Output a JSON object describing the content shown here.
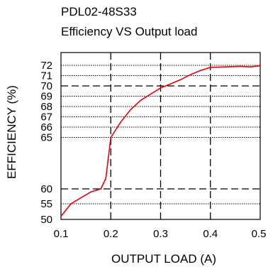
{
  "chart_data": {
    "type": "line",
    "title": "PDL02-48S33",
    "subtitle": "Efficiency VS Output load",
    "xlabel": "OUTPUT LOAD (A)",
    "ylabel": "EFFICIENCY (%)",
    "xlim": [
      0.1,
      0.5
    ],
    "x_ticks": [
      "0.1",
      "0.2",
      "0.3",
      "0.4",
      "0.5"
    ],
    "y_ticks": [
      "50",
      "55",
      "60",
      "65",
      "66",
      "67",
      "68",
      "69",
      "70",
      "71",
      "72"
    ],
    "y_scale": "piecewise (50-60 compressed, 60-72 expanded)",
    "grid": true,
    "line_color": "#e8000b",
    "series": [
      {
        "x": [
          0.1,
          0.12,
          0.14,
          0.15,
          0.16,
          0.18,
          0.19,
          0.2,
          0.22,
          0.24,
          0.26,
          0.28,
          0.3,
          0.32,
          0.34,
          0.36,
          0.38,
          0.4,
          0.43,
          0.46,
          0.48,
          0.5
        ],
        "y": [
          51,
          55,
          57,
          58,
          59,
          60,
          61,
          65,
          66.5,
          67.7,
          68.6,
          69.2,
          69.8,
          70.2,
          70.6,
          71.1,
          71.5,
          71.8,
          71.85,
          71.9,
          71.85,
          71.95
        ]
      }
    ]
  }
}
